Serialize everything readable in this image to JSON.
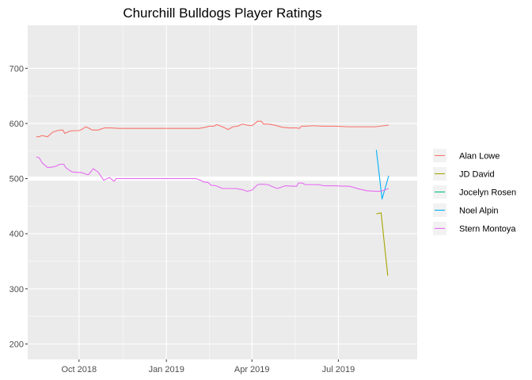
{
  "chart_data": {
    "type": "line",
    "title": "Churchill Bulldogs Player Ratings",
    "xlabel": "",
    "ylabel": "",
    "x_type": "date",
    "xlim": [
      "2018-08-08",
      "2019-09-22"
    ],
    "ylim": [
      172,
      778
    ],
    "x_ticks": [
      {
        "label": "Oct 2018",
        "date": "2018-10-01"
      },
      {
        "label": "Jan 2019",
        "date": "2019-01-01"
      },
      {
        "label": "Apr 2019",
        "date": "2019-04-01"
      },
      {
        "label": "Jul 2019",
        "date": "2019-07-01"
      }
    ],
    "y_ticks": [
      200,
      300,
      400,
      500,
      600,
      700
    ],
    "baseline": 500,
    "grid": true,
    "legend_position": "right",
    "series": [
      {
        "name": "Alan Lowe",
        "color": "#F8766D",
        "points": [
          [
            "2018-08-17",
            576
          ],
          [
            "2018-08-20",
            576
          ],
          [
            "2018-08-23",
            578
          ],
          [
            "2018-08-26",
            577
          ],
          [
            "2018-08-29",
            576
          ],
          [
            "2018-09-03",
            584
          ],
          [
            "2018-09-08",
            587
          ],
          [
            "2018-09-12",
            588
          ],
          [
            "2018-09-14",
            588
          ],
          [
            "2018-09-16",
            582
          ],
          [
            "2018-09-21",
            586
          ],
          [
            "2018-09-26",
            587
          ],
          [
            "2018-10-01",
            587
          ],
          [
            "2018-10-05",
            590
          ],
          [
            "2018-10-08",
            594
          ],
          [
            "2018-10-12",
            591
          ],
          [
            "2018-10-15",
            588
          ],
          [
            "2018-10-21",
            588
          ],
          [
            "2018-10-28",
            592
          ],
          [
            "2018-11-04",
            592
          ],
          [
            "2018-11-12",
            591
          ],
          [
            "2018-11-26",
            591
          ],
          [
            "2018-12-10",
            591
          ],
          [
            "2018-12-24",
            591
          ],
          [
            "2019-01-07",
            591
          ],
          [
            "2019-01-21",
            591
          ],
          [
            "2019-02-04",
            591
          ],
          [
            "2019-02-11",
            593
          ],
          [
            "2019-02-15",
            595
          ],
          [
            "2019-02-20",
            595
          ],
          [
            "2019-02-23",
            598
          ],
          [
            "2019-03-01",
            594
          ],
          [
            "2019-03-07",
            589
          ],
          [
            "2019-03-12",
            594
          ],
          [
            "2019-03-17",
            595
          ],
          [
            "2019-03-22",
            599
          ],
          [
            "2019-03-27",
            597
          ],
          [
            "2019-04-01",
            596
          ],
          [
            "2019-04-05",
            601
          ],
          [
            "2019-04-07",
            604
          ],
          [
            "2019-04-11",
            604
          ],
          [
            "2019-04-13",
            599
          ],
          [
            "2019-04-18",
            599
          ],
          [
            "2019-04-25",
            597
          ],
          [
            "2019-05-03",
            593
          ],
          [
            "2019-05-10",
            592
          ],
          [
            "2019-05-18",
            592
          ],
          [
            "2019-05-21",
            591
          ],
          [
            "2019-05-23",
            595
          ],
          [
            "2019-05-28",
            595
          ],
          [
            "2019-06-04",
            596
          ],
          [
            "2019-06-15",
            595
          ],
          [
            "2019-06-28",
            595
          ],
          [
            "2019-07-12",
            594
          ],
          [
            "2019-07-26",
            594
          ],
          [
            "2019-08-05",
            594
          ],
          [
            "2019-08-09",
            594
          ],
          [
            "2019-08-18",
            596
          ],
          [
            "2019-08-23",
            597
          ]
        ]
      },
      {
        "name": "JD David",
        "color": "#A3A500",
        "points": [
          [
            "2019-08-10",
            436
          ],
          [
            "2019-08-15",
            438
          ],
          [
            "2019-08-22",
            324
          ]
        ]
      },
      {
        "name": "Jocelyn Rosen",
        "color": "#00BF7D",
        "points": []
      },
      {
        "name": "Noel Alpin",
        "color": "#00B0F6",
        "points": [
          [
            "2019-08-10",
            552
          ],
          [
            "2019-08-16",
            463
          ],
          [
            "2019-08-23",
            505
          ]
        ]
      },
      {
        "name": "Stern Montoya",
        "color": "#E76BF3",
        "points": [
          [
            "2018-08-17",
            539
          ],
          [
            "2018-08-20",
            538
          ],
          [
            "2018-08-23",
            529
          ],
          [
            "2018-08-29",
            520
          ],
          [
            "2018-09-03",
            521
          ],
          [
            "2018-09-06",
            522
          ],
          [
            "2018-09-11",
            526
          ],
          [
            "2018-09-15",
            526
          ],
          [
            "2018-09-17",
            520
          ],
          [
            "2018-09-21",
            515
          ],
          [
            "2018-09-24",
            512
          ],
          [
            "2018-10-01",
            511
          ],
          [
            "2018-10-04",
            511
          ],
          [
            "2018-10-08",
            508
          ],
          [
            "2018-10-11",
            507
          ],
          [
            "2018-10-16",
            518
          ],
          [
            "2018-10-21",
            512
          ],
          [
            "2018-10-27",
            497
          ],
          [
            "2018-11-02",
            502
          ],
          [
            "2018-11-07",
            495
          ],
          [
            "2018-11-09",
            500
          ],
          [
            "2018-11-15",
            500
          ],
          [
            "2018-11-30",
            500
          ],
          [
            "2018-12-15",
            500
          ],
          [
            "2019-01-01",
            500
          ],
          [
            "2019-01-15",
            500
          ],
          [
            "2019-02-01",
            500
          ],
          [
            "2019-02-06",
            497
          ],
          [
            "2019-02-09",
            494
          ],
          [
            "2019-02-14",
            493
          ],
          [
            "2019-02-17",
            488
          ],
          [
            "2019-02-22",
            487
          ],
          [
            "2019-03-01",
            482
          ],
          [
            "2019-03-05",
            482
          ],
          [
            "2019-03-15",
            482
          ],
          [
            "2019-03-22",
            480
          ],
          [
            "2019-03-27",
            477
          ],
          [
            "2019-04-01",
            479
          ],
          [
            "2019-04-07",
            489
          ],
          [
            "2019-04-11",
            490
          ],
          [
            "2019-04-18",
            489
          ],
          [
            "2019-04-23",
            485
          ],
          [
            "2019-04-28",
            482
          ],
          [
            "2019-05-03",
            485
          ],
          [
            "2019-05-06",
            487
          ],
          [
            "2019-05-18",
            486
          ],
          [
            "2019-05-20",
            492
          ],
          [
            "2019-05-24",
            492
          ],
          [
            "2019-05-27",
            489
          ],
          [
            "2019-06-03",
            489
          ],
          [
            "2019-06-10",
            489
          ],
          [
            "2019-06-16",
            487
          ],
          [
            "2019-06-27",
            487
          ],
          [
            "2019-07-13",
            486
          ],
          [
            "2019-07-23",
            481
          ],
          [
            "2019-07-31",
            478
          ],
          [
            "2019-08-09",
            477
          ],
          [
            "2019-08-15",
            477
          ],
          [
            "2019-08-18",
            479
          ],
          [
            "2019-08-23",
            482
          ]
        ]
      }
    ]
  }
}
